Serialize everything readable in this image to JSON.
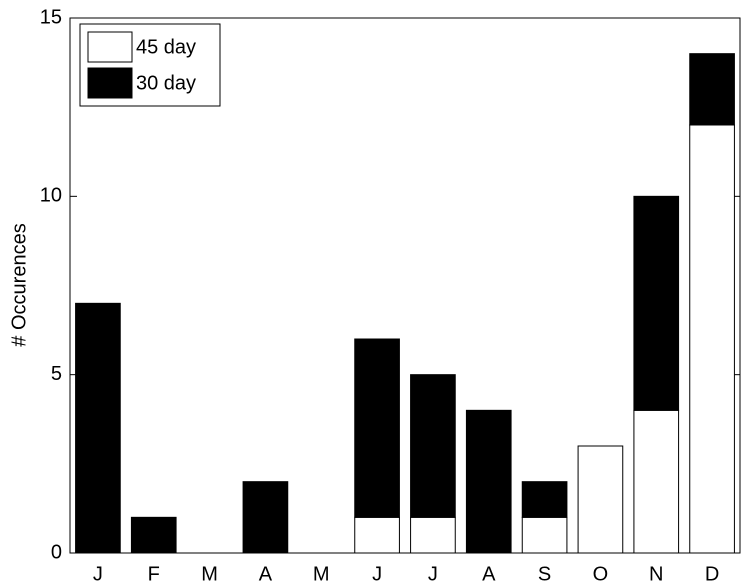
{
  "chart_data": {
    "type": "stacked_bar",
    "y_label": "# Occurences",
    "categories": [
      "J",
      "F",
      "M",
      "A",
      "M",
      "J",
      "J",
      "A",
      "S",
      "O",
      "N",
      "D"
    ],
    "series": [
      {
        "name": "45 day",
        "color": "#ffffff",
        "values": [
          0,
          0,
          0,
          0,
          0,
          1,
          1,
          0,
          1,
          3,
          4,
          12
        ]
      },
      {
        "name": "30 day",
        "color": "#000000",
        "values": [
          7,
          1,
          0,
          2,
          0,
          5,
          4,
          4,
          1,
          0,
          6,
          2
        ]
      }
    ],
    "ylim": [
      0,
      15
    ],
    "yticks": [
      0,
      5,
      10,
      15
    ],
    "legend": "upper left"
  }
}
